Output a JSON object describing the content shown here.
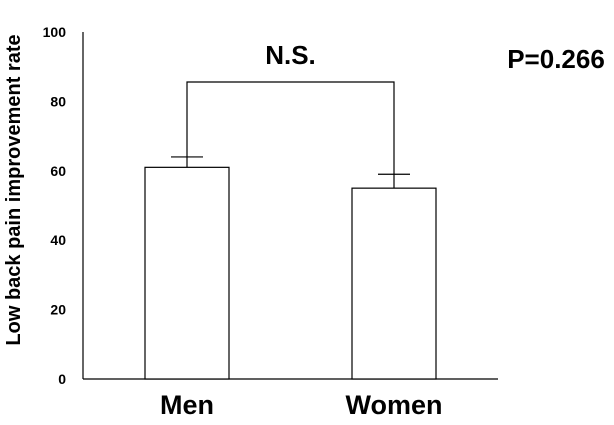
{
  "chart_data": {
    "type": "bar",
    "categories": [
      "Men",
      "Women"
    ],
    "values": [
      61,
      55
    ],
    "error_upper": [
      64,
      59
    ],
    "ylabel": "Low back pain improvement rate",
    "xlabel": "",
    "ylim": [
      0,
      100
    ],
    "yticks": [
      "0",
      "20",
      "40",
      "60",
      "80",
      "100"
    ],
    "grid": false,
    "legend": "none",
    "annotations": {
      "significance": "N.S.",
      "p_value": "P=0.266"
    },
    "colors": {
      "bar_fill": "#ffffff",
      "bar_stroke": "#000000",
      "axis": "#000000"
    }
  }
}
